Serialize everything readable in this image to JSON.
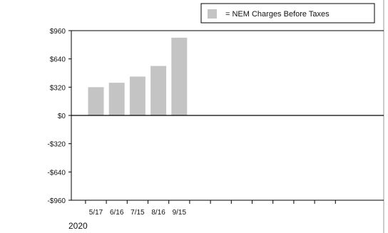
{
  "chart_data": {
    "type": "bar",
    "categories": [
      "5/17",
      "6/16",
      "7/15",
      "8/16",
      "9/15"
    ],
    "series": [
      {
        "name": "= NEM Charges Before Taxes",
        "values": [
          320,
          370,
          440,
          560,
          880
        ]
      }
    ],
    "slots_total": 12,
    "y_ticks": [
      "$960",
      "$640",
      "$320",
      "$0",
      "-$320",
      "-$640",
      "-$960"
    ],
    "ylim": [
      -960,
      960
    ],
    "year": "2020",
    "legend_position": "top-right",
    "grid": false,
    "bar_color": "#c4c4c4"
  }
}
